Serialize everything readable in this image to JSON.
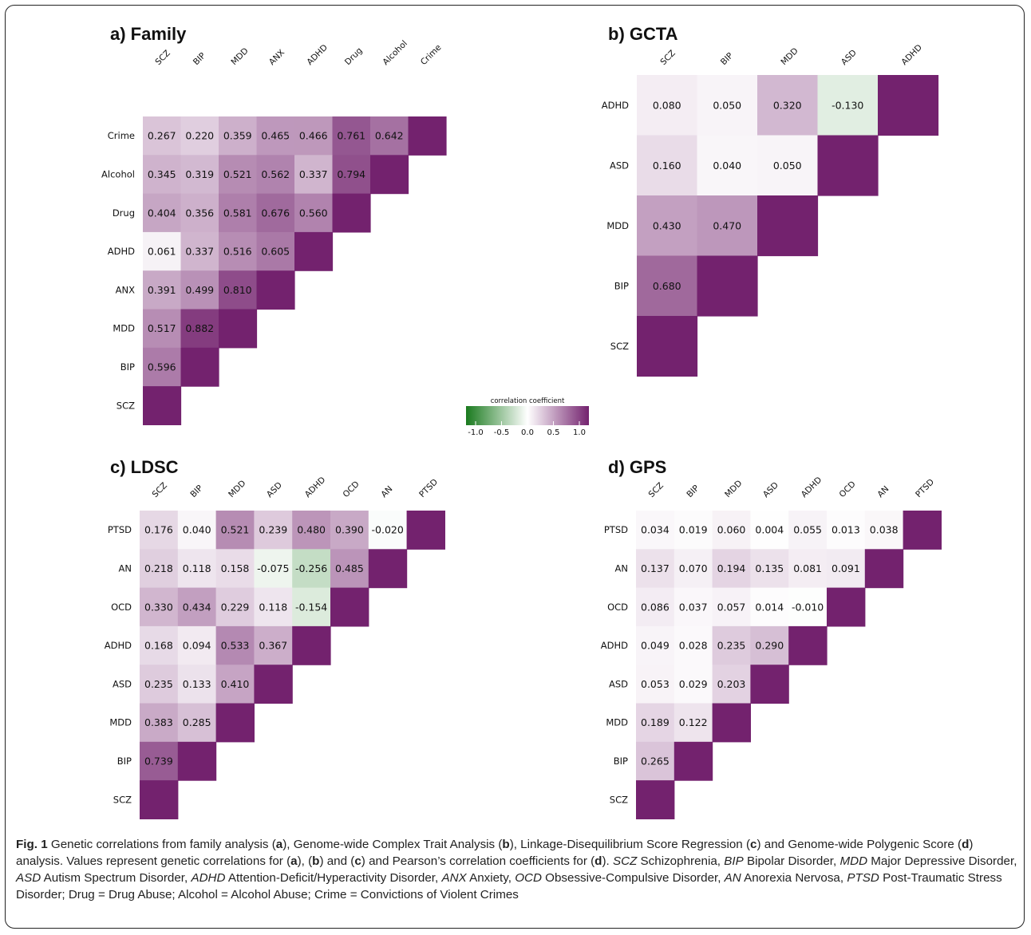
{
  "chart_data": [
    {
      "type": "heatmap",
      "panel": "a",
      "title": "a) Family",
      "labels": [
        "SCZ",
        "BIP",
        "MDD",
        "ANX",
        "ADHD",
        "Drug",
        "Alcohol",
        "Crime"
      ],
      "values": [
        [
          null,
          0.596,
          0.517,
          0.391,
          0.061,
          0.404,
          0.345,
          0.267
        ],
        [
          null,
          null,
          0.882,
          0.499,
          0.337,
          0.356,
          0.319,
          0.22
        ],
        [
          null,
          null,
          null,
          0.81,
          0.516,
          0.581,
          0.521,
          0.359
        ],
        [
          null,
          null,
          null,
          null,
          0.605,
          0.676,
          0.562,
          0.465
        ],
        [
          null,
          null,
          null,
          null,
          null,
          0.56,
          0.337,
          0.466
        ],
        [
          null,
          null,
          null,
          null,
          null,
          null,
          0.794,
          0.761
        ],
        [
          null,
          null,
          null,
          null,
          null,
          null,
          null,
          0.642
        ],
        [
          null,
          null,
          null,
          null,
          null,
          null,
          null,
          null
        ]
      ]
    },
    {
      "type": "heatmap",
      "panel": "b",
      "title": "b) GCTA",
      "labels": [
        "SCZ",
        "BIP",
        "MDD",
        "ASD",
        "ADHD"
      ],
      "values": [
        [
          null,
          0.68,
          0.43,
          0.16,
          0.08
        ],
        [
          null,
          null,
          0.47,
          0.04,
          0.05
        ],
        [
          null,
          null,
          null,
          0.05,
          0.32
        ],
        [
          null,
          null,
          null,
          null,
          -0.13
        ],
        [
          null,
          null,
          null,
          null,
          null
        ]
      ]
    },
    {
      "type": "heatmap",
      "panel": "c",
      "title": "c) LDSC",
      "labels": [
        "SCZ",
        "BIP",
        "MDD",
        "ASD",
        "ADHD",
        "OCD",
        "AN",
        "PTSD"
      ],
      "values": [
        [
          null,
          0.739,
          0.383,
          0.235,
          0.168,
          0.33,
          0.218,
          0.176
        ],
        [
          null,
          null,
          0.285,
          0.133,
          0.094,
          0.434,
          0.118,
          0.04
        ],
        [
          null,
          null,
          null,
          0.41,
          0.533,
          0.229,
          0.158,
          0.521
        ],
        [
          null,
          null,
          null,
          null,
          0.367,
          0.118,
          -0.075,
          0.239
        ],
        [
          null,
          null,
          null,
          null,
          null,
          -0.154,
          -0.256,
          0.48
        ],
        [
          null,
          null,
          null,
          null,
          null,
          null,
          0.485,
          0.39
        ],
        [
          null,
          null,
          null,
          null,
          null,
          null,
          null,
          -0.02
        ],
        [
          null,
          null,
          null,
          null,
          null,
          null,
          null,
          null
        ]
      ]
    },
    {
      "type": "heatmap",
      "panel": "d",
      "title": "d) GPS",
      "labels": [
        "SCZ",
        "BIP",
        "MDD",
        "ASD",
        "ADHD",
        "OCD",
        "AN",
        "PTSD"
      ],
      "values": [
        [
          null,
          0.265,
          0.189,
          0.053,
          0.049,
          0.086,
          0.137,
          0.034
        ],
        [
          null,
          null,
          0.122,
          0.029,
          0.028,
          0.037,
          0.07,
          0.019
        ],
        [
          null,
          null,
          null,
          0.203,
          0.235,
          0.057,
          0.194,
          0.06
        ],
        [
          null,
          null,
          null,
          null,
          0.29,
          0.014,
          0.135,
          0.004
        ],
        [
          null,
          null,
          null,
          null,
          null,
          -0.01,
          0.081,
          0.055
        ],
        [
          null,
          null,
          null,
          null,
          null,
          null,
          0.091,
          0.013
        ],
        [
          null,
          null,
          null,
          null,
          null,
          null,
          null,
          0.038
        ],
        [
          null,
          null,
          null,
          null,
          null,
          null,
          null,
          null
        ]
      ]
    }
  ],
  "legend": {
    "title": "correlation coefficient",
    "ticks": [
      "-1.0",
      "-0.5",
      "0.0",
      "0.5",
      "1.0"
    ],
    "range": [
      -1,
      1
    ],
    "colors": {
      "negative": "#1a7a1e",
      "zero": "#ffffff",
      "positive": "#73226e"
    }
  },
  "caption": {
    "label": "Fig. 1",
    "segments": [
      {
        "t": " Genetic correlations from family analysis (",
        "s": "n"
      },
      {
        "t": "a",
        "s": "b"
      },
      {
        "t": "), Genome-wide Complex Trait Analysis (",
        "s": "n"
      },
      {
        "t": "b",
        "s": "b"
      },
      {
        "t": "), Linkage-Disequilibrium Score Regression (",
        "s": "n"
      },
      {
        "t": "c",
        "s": "b"
      },
      {
        "t": ") and Genome-wide Polygenic Score (",
        "s": "n"
      },
      {
        "t": "d",
        "s": "b"
      },
      {
        "t": ") analysis. Values represent genetic correlations for (",
        "s": "n"
      },
      {
        "t": "a",
        "s": "b"
      },
      {
        "t": "), (",
        "s": "n"
      },
      {
        "t": "b",
        "s": "b"
      },
      {
        "t": ") and (",
        "s": "n"
      },
      {
        "t": "c",
        "s": "b"
      },
      {
        "t": ") and Pearson’s correlation coefficients for (",
        "s": "n"
      },
      {
        "t": "d",
        "s": "b"
      },
      {
        "t": "). ",
        "s": "n"
      },
      {
        "t": "SCZ",
        "s": "i"
      },
      {
        "t": " Schizophrenia, ",
        "s": "n"
      },
      {
        "t": "BIP",
        "s": "i"
      },
      {
        "t": " Bipolar Disorder, ",
        "s": "n"
      },
      {
        "t": "MDD",
        "s": "i"
      },
      {
        "t": " Major Depressive Disorder, ",
        "s": "n"
      },
      {
        "t": "ASD",
        "s": "i"
      },
      {
        "t": " Autism Spectrum Disorder, ",
        "s": "n"
      },
      {
        "t": "ADHD",
        "s": "i"
      },
      {
        "t": " Attention-Deficit/Hyperactivity Disorder, ",
        "s": "n"
      },
      {
        "t": "ANX",
        "s": "i"
      },
      {
        "t": " Anxiety, ",
        "s": "n"
      },
      {
        "t": "OCD",
        "s": "i"
      },
      {
        "t": " Obsessive-Compulsive Disorder, ",
        "s": "n"
      },
      {
        "t": "AN",
        "s": "i"
      },
      {
        "t": " Anorexia Nervosa, ",
        "s": "n"
      },
      {
        "t": "PTSD",
        "s": "i"
      },
      {
        "t": " Post-Traumatic Stress Disorder; Drug = Drug Abuse; Alcohol = Alcohol Abuse; Crime = Convictions of Violent Crimes",
        "s": "n"
      }
    ]
  }
}
